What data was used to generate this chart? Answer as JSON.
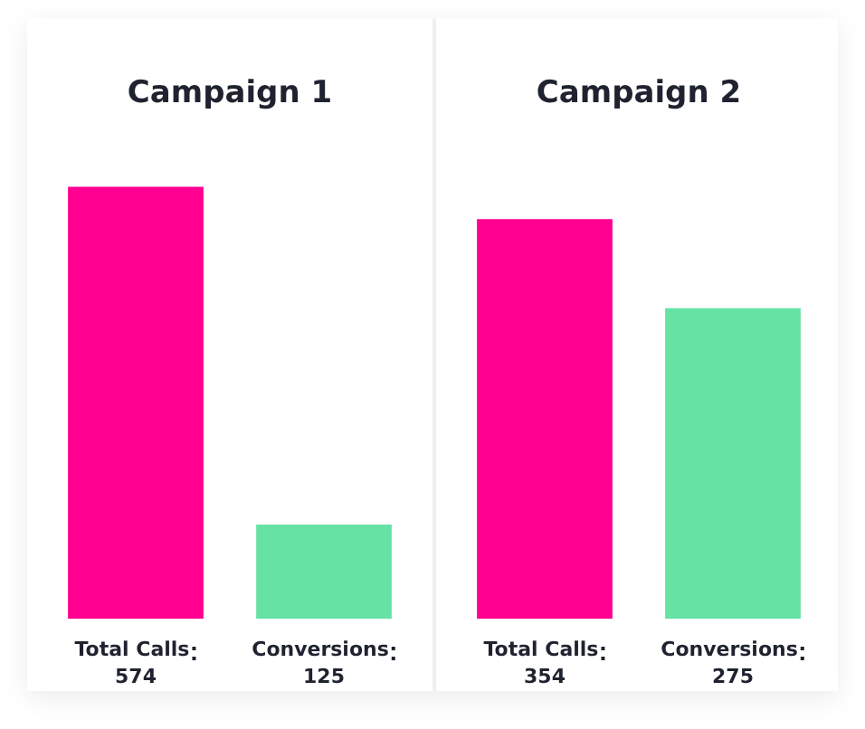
{
  "chart_data": [
    {
      "type": "bar",
      "title": "Campaign 1",
      "categories": [
        "Total Calls",
        "Conversions"
      ],
      "values": [
        574,
        125
      ],
      "colors": [
        "#ff0090",
        "#66e3a4"
      ],
      "data_labels": true,
      "grid": false,
      "legend": false
    },
    {
      "type": "bar",
      "title": "Campaign 2",
      "categories": [
        "Total Calls",
        "Conversions"
      ],
      "values": [
        354,
        275
      ],
      "colors": [
        "#ff0090",
        "#66e3a4"
      ],
      "data_labels": true,
      "grid": false,
      "legend": false
    }
  ]
}
